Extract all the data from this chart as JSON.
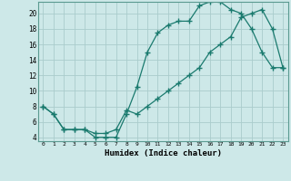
{
  "xlabel": "Humidex (Indice chaleur)",
  "bg_color": "#cde8e8",
  "grid_color": "#aacccc",
  "line_color": "#1a7a6e",
  "xlim": [
    -0.5,
    23.5
  ],
  "ylim": [
    3.5,
    21.5
  ],
  "xticks": [
    0,
    1,
    2,
    3,
    4,
    5,
    6,
    7,
    8,
    9,
    10,
    11,
    12,
    13,
    14,
    15,
    16,
    17,
    18,
    19,
    20,
    21,
    22,
    23
  ],
  "yticks": [
    4,
    6,
    8,
    10,
    12,
    14,
    16,
    18,
    20
  ],
  "series1_x": [
    0,
    1,
    2,
    3,
    4,
    5,
    6,
    7,
    8,
    9,
    10,
    11,
    12,
    13,
    14,
    15,
    16,
    17,
    18,
    19,
    20,
    21,
    22,
    23
  ],
  "series1_y": [
    8,
    7,
    5,
    5,
    5,
    4,
    4,
    4,
    7,
    10.5,
    15,
    17.5,
    18.5,
    19,
    19,
    21,
    21.5,
    21.5,
    20.5,
    20,
    18,
    15,
    13,
    13
  ],
  "series2_x": [
    0,
    1,
    2,
    3,
    4,
    5,
    6,
    7,
    8,
    9,
    10,
    11,
    12,
    13,
    14,
    15,
    16,
    17,
    18,
    19,
    20,
    21,
    22,
    23
  ],
  "series2_y": [
    8,
    7,
    5,
    5,
    5,
    4.5,
    4.5,
    5,
    7.5,
    7,
    8,
    9,
    10,
    11,
    12,
    13,
    15,
    16,
    17,
    19.5,
    20,
    20.5,
    18,
    13
  ]
}
